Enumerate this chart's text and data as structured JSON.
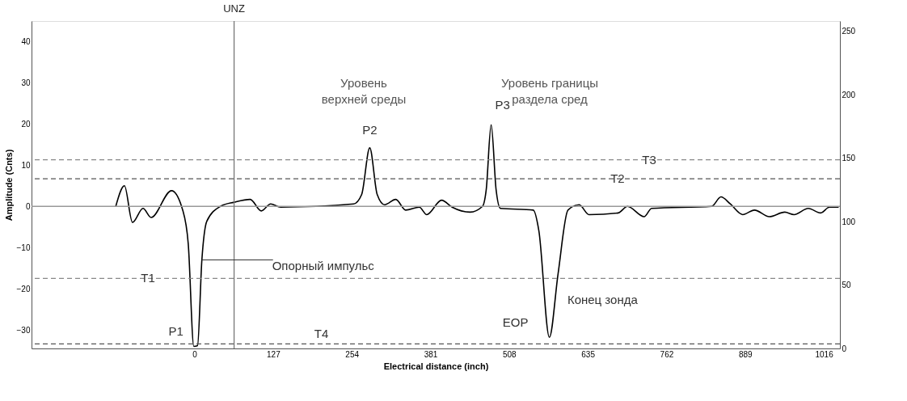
{
  "chart_data": {
    "type": "line",
    "xlabel": "Electrical distance (inch)",
    "ylabel": "Amplitude (Cnts)",
    "xlim": [
      -263,
      1042
    ],
    "xticks": [
      0,
      127,
      254,
      381,
      508,
      635,
      762,
      889,
      1016
    ],
    "ylim": [
      -34.5,
      45
    ],
    "yticks": [
      -30,
      -20,
      -10,
      0,
      10,
      20,
      30,
      40
    ],
    "y2lim": [
      0,
      258
    ],
    "y2ticks": [
      0,
      50,
      100,
      150,
      200,
      250
    ],
    "grid": false,
    "line_style": "solid",
    "marker": "none",
    "series": [
      {
        "color": "#000000",
        "x": [
          -127,
          -113,
          -100,
          -83,
          -70,
          -37,
          -19,
          -10,
          -1,
          5,
          12,
          20,
          42,
          64,
          90,
          108,
          123,
          139,
          257,
          270,
          283,
          295,
          307,
          325,
          341,
          363,
          375,
          399,
          416,
          445,
          465,
          471,
          479,
          487,
          494,
          547,
          556,
          573,
          587,
          603,
          621,
          637,
          684,
          699,
          726,
          738,
          835,
          850,
          865,
          885,
          904,
          928,
          953,
          968,
          991,
          1011,
          1025,
          1040
        ],
        "values": [
          0,
          5.0,
          -3.9,
          -0.5,
          -2.7,
          3.8,
          -0.9,
          -9.1,
          -34,
          -33.8,
          -13,
          -3.6,
          0,
          1.0,
          1.7,
          -1.1,
          0.6,
          -0.2,
          0.6,
          2.9,
          14.2,
          2.9,
          0.4,
          1.7,
          -0.9,
          -0.2,
          -2.0,
          1.5,
          -0.2,
          -1.4,
          0,
          4.0,
          19.8,
          4.0,
          -0.5,
          -0.9,
          -5.9,
          -31.8,
          -16.4,
          -0.9,
          0.4,
          -2.0,
          -1.6,
          0,
          -2.5,
          -0.5,
          0,
          2.3,
          0.6,
          -2.0,
          -0.9,
          -2.5,
          -1.4,
          -2.0,
          -0.5,
          -1.6,
          -0.2,
          -0.2
        ]
      }
    ],
    "ref_lines": [
      {
        "axis": "y",
        "value": 0,
        "color": "#999999",
        "line_style": "solid"
      },
      {
        "axis": "y",
        "value": -17.5,
        "color": "#888888",
        "line_style": "dashed"
      },
      {
        "axis": "y",
        "value": 6.7,
        "color": "#555555",
        "line_style": "dashed"
      },
      {
        "axis": "y",
        "value": 11.3,
        "color": "#888888",
        "line_style": "dashed"
      },
      {
        "axis": "y",
        "value": -33.4,
        "color": "#555555",
        "line_style": "dashed"
      },
      {
        "axis": "x",
        "value": 64,
        "label": "UNZ",
        "color": "#777777",
        "line_style": "solid"
      }
    ],
    "annotations": [
      {
        "text": "T1",
        "x": -75,
        "y": -17.5
      },
      {
        "text": "T2",
        "x": 683,
        "y": 6.7
      },
      {
        "text": "T3",
        "x": 734,
        "y": 11.3
      },
      {
        "text": "T4",
        "x": 205,
        "y": -33.4
      },
      {
        "text": "P1",
        "x": -1,
        "y": -34
      },
      {
        "text": "P2",
        "x": 283,
        "y": 14.2
      },
      {
        "text": "P3",
        "x": 479,
        "y": 19.8
      },
      {
        "text": "EOP",
        "x": 573,
        "y": -31.8
      },
      {
        "text": "Опорный импульс",
        "x": 12,
        "y": -13
      },
      {
        "text": "Конец зонда",
        "x": 587,
        "y": -16.4
      },
      "Уровень\nверхней среды",
      "Уровень границы\nраздела сред"
    ]
  }
}
